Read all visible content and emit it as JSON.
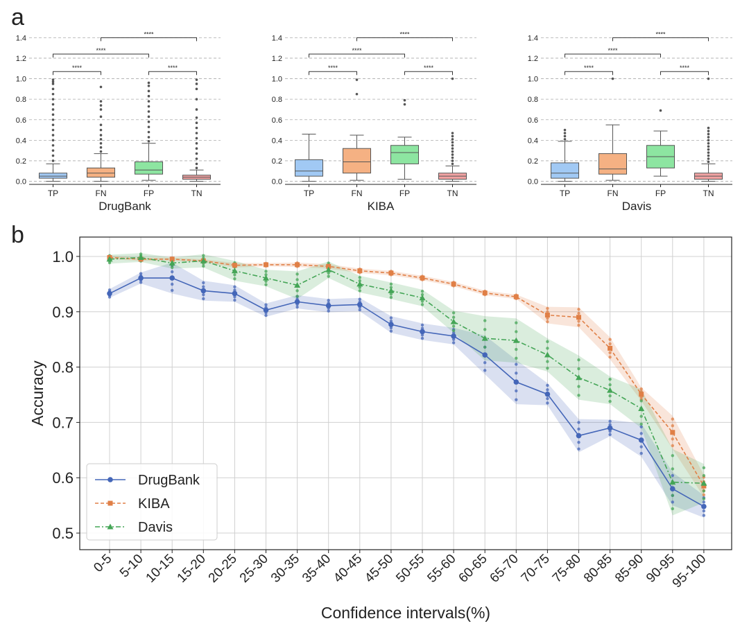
{
  "panel_labels": {
    "a": "a",
    "b": "b"
  },
  "colors": {
    "TP": "#a1c9f4",
    "FN": "#f5b183",
    "FP": "#8de5a1",
    "TN": "#f1a2a2",
    "DrugBank": "#4466b8",
    "KIBA": "#e07f46",
    "Davis": "#44a556",
    "grid": "#aaaaaa",
    "outlier": "#555555"
  },
  "chart_data": [
    {
      "type": "box",
      "title": "DrugBank",
      "categories": [
        "TP",
        "FN",
        "FP",
        "TN"
      ],
      "yticks": [
        "0.0",
        "0.2",
        "0.4",
        "0.6",
        "0.8",
        "1.0",
        "1.2",
        "1.4"
      ],
      "ylim": [
        -0.03,
        1.47
      ],
      "boxes": [
        {
          "label": "TP",
          "whislo": 0.0,
          "q1": 0.03,
          "med": 0.05,
          "q3": 0.08,
          "whishi": 0.17,
          "fliers": [
            0.2,
            0.25,
            0.3,
            0.35,
            0.4,
            0.45,
            0.5,
            0.55,
            0.6,
            0.65,
            0.7,
            0.75,
            0.8,
            0.85,
            0.9,
            0.95,
            0.97,
            0.99
          ]
        },
        {
          "label": "FN",
          "whislo": 0.0,
          "q1": 0.04,
          "med": 0.08,
          "q3": 0.13,
          "whishi": 0.27,
          "fliers": [
            0.29,
            0.33,
            0.37,
            0.41,
            0.45,
            0.5,
            0.55,
            0.63,
            0.7,
            0.74,
            0.78,
            0.92
          ]
        },
        {
          "label": "FP",
          "whislo": 0.01,
          "q1": 0.07,
          "med": 0.11,
          "q3": 0.19,
          "whishi": 0.37,
          "fliers": [
            0.39,
            0.43,
            0.48,
            0.53,
            0.58,
            0.63,
            0.68,
            0.73,
            0.78,
            0.83,
            0.88,
            0.93,
            0.96
          ]
        },
        {
          "label": "TN",
          "whislo": 0.0,
          "q1": 0.02,
          "med": 0.04,
          "q3": 0.06,
          "whishi": 0.11,
          "fliers": [
            0.13,
            0.17,
            0.22,
            0.27,
            0.32,
            0.37,
            0.42,
            0.47,
            0.52,
            0.57,
            0.62,
            0.7,
            0.8,
            0.9,
            0.95,
            0.99
          ]
        }
      ],
      "brackets": [
        {
          "from": "TP",
          "to": "FN",
          "level": 1.07,
          "label": "****"
        },
        {
          "from": "FP",
          "to": "TN",
          "level": 1.07,
          "label": "****"
        },
        {
          "from": "TP",
          "to": "FP",
          "level": 1.24,
          "label": "****"
        },
        {
          "from": "FN",
          "to": "TN",
          "level": 1.4,
          "label": "****"
        }
      ]
    },
    {
      "type": "box",
      "title": "KIBA",
      "categories": [
        "TP",
        "FN",
        "FP",
        "TN"
      ],
      "yticks": [
        "0.0",
        "0.2",
        "0.4",
        "0.6",
        "0.8",
        "1.0",
        "1.2",
        "1.4"
      ],
      "ylim": [
        -0.03,
        1.47
      ],
      "boxes": [
        {
          "label": "TP",
          "whislo": 0.0,
          "q1": 0.05,
          "med": 0.1,
          "q3": 0.21,
          "whishi": 0.46,
          "fliers": []
        },
        {
          "label": "FN",
          "whislo": 0.01,
          "q1": 0.08,
          "med": 0.19,
          "q3": 0.32,
          "whishi": 0.45,
          "fliers": [
            0.85,
            0.99
          ]
        },
        {
          "label": "FP",
          "whislo": 0.02,
          "q1": 0.17,
          "med": 0.28,
          "q3": 0.35,
          "whishi": 0.43,
          "fliers": [
            0.75,
            0.79
          ]
        },
        {
          "label": "TN",
          "whislo": 0.0,
          "q1": 0.02,
          "med": 0.05,
          "q3": 0.08,
          "whishi": 0.15,
          "fliers": [
            0.17,
            0.2,
            0.23,
            0.26,
            0.29,
            0.32,
            0.35,
            0.38,
            0.41,
            0.44,
            0.47,
            1.0
          ]
        }
      ],
      "brackets": [
        {
          "from": "TP",
          "to": "FN",
          "level": 1.07,
          "label": "****"
        },
        {
          "from": "FP",
          "to": "TN",
          "level": 1.07,
          "label": "****"
        },
        {
          "from": "TP",
          "to": "FP",
          "level": 1.24,
          "label": "****"
        },
        {
          "from": "FN",
          "to": "TN",
          "level": 1.4,
          "label": "****"
        }
      ]
    },
    {
      "type": "box",
      "title": "Davis",
      "categories": [
        "TP",
        "FN",
        "FP",
        "TN"
      ],
      "yticks": [
        "0.0",
        "0.2",
        "0.4",
        "0.6",
        "0.8",
        "1.0",
        "1.2",
        "1.4"
      ],
      "ylim": [
        -0.03,
        1.47
      ],
      "boxes": [
        {
          "label": "TP",
          "whislo": 0.0,
          "q1": 0.03,
          "med": 0.08,
          "q3": 0.18,
          "whishi": 0.39,
          "fliers": [
            0.41,
            0.44,
            0.47,
            0.5
          ]
        },
        {
          "label": "FN",
          "whislo": 0.01,
          "q1": 0.07,
          "med": 0.12,
          "q3": 0.27,
          "whishi": 0.55,
          "fliers": [
            1.0
          ]
        },
        {
          "label": "FP",
          "whislo": 0.05,
          "q1": 0.13,
          "med": 0.24,
          "q3": 0.35,
          "whishi": 0.49,
          "fliers": [
            0.69
          ]
        },
        {
          "label": "TN",
          "whislo": 0.0,
          "q1": 0.02,
          "med": 0.05,
          "q3": 0.08,
          "whishi": 0.17,
          "fliers": [
            0.19,
            0.22,
            0.25,
            0.28,
            0.31,
            0.34,
            0.37,
            0.4,
            0.43,
            0.46,
            0.49,
            0.52,
            1.0
          ]
        }
      ],
      "brackets": [
        {
          "from": "TP",
          "to": "FN",
          "level": 1.07,
          "label": "****"
        },
        {
          "from": "FP",
          "to": "TN",
          "level": 1.07,
          "label": "****"
        },
        {
          "from": "TP",
          "to": "FP",
          "level": 1.24,
          "label": "****"
        },
        {
          "from": "FN",
          "to": "TN",
          "level": 1.4,
          "label": "****"
        }
      ]
    },
    {
      "type": "line",
      "xlabel": "Confidence intervals(%)",
      "ylabel": "Accuracy",
      "ylim": [
        0.47,
        1.035
      ],
      "yticks": [
        "0.5",
        "0.6",
        "0.7",
        "0.8",
        "0.9",
        "1.0"
      ],
      "categories": [
        "0-5",
        "5-10",
        "10-15",
        "15-20",
        "20-25",
        "25-30",
        "30-35",
        "35-40",
        "40-45",
        "45-50",
        "50-55",
        "55-60",
        "60-65",
        "65-70",
        "70-75",
        "75-80",
        "80-85",
        "85-90",
        "90-95",
        "95-100"
      ],
      "legend_position": "lower-left",
      "series": [
        {
          "name": "DrugBank",
          "marker": "circle",
          "dash": "solid",
          "values": [
            0.933,
            0.961,
            0.961,
            0.938,
            0.933,
            0.903,
            0.918,
            0.911,
            0.913,
            0.877,
            0.864,
            0.856,
            0.822,
            0.773,
            0.751,
            0.676,
            0.69,
            0.668,
            0.58,
            0.548
          ],
          "band": [
            0.008,
            0.01,
            0.028,
            0.018,
            0.015,
            0.012,
            0.012,
            0.012,
            0.012,
            0.015,
            0.015,
            0.015,
            0.035,
            0.04,
            0.02,
            0.03,
            0.015,
            0.03,
            0.03,
            0.02
          ]
        },
        {
          "name": "KIBA",
          "marker": "square",
          "dash": "dashed",
          "values": [
            0.998,
            0.995,
            0.995,
            0.992,
            0.984,
            0.985,
            0.985,
            0.982,
            0.974,
            0.97,
            0.961,
            0.95,
            0.934,
            0.927,
            0.894,
            0.89,
            0.834,
            0.751,
            0.682,
            0.585
          ],
          "band": [
            0.003,
            0.003,
            0.003,
            0.003,
            0.004,
            0.003,
            0.004,
            0.004,
            0.004,
            0.004,
            0.004,
            0.004,
            0.004,
            0.004,
            0.015,
            0.018,
            0.02,
            0.012,
            0.03,
            0.02
          ]
        },
        {
          "name": "Davis",
          "marker": "triangle",
          "dash": "dashdot",
          "values": [
            0.995,
            0.998,
            0.988,
            0.992,
            0.974,
            0.961,
            0.948,
            0.976,
            0.95,
            0.938,
            0.925,
            0.882,
            0.852,
            0.848,
            0.822,
            0.781,
            0.758,
            0.725,
            0.592,
            0.59
          ],
          "band": [
            0.008,
            0.008,
            0.01,
            0.012,
            0.018,
            0.015,
            0.025,
            0.015,
            0.015,
            0.015,
            0.015,
            0.02,
            0.04,
            0.04,
            0.03,
            0.04,
            0.025,
            0.035,
            0.06,
            0.035
          ]
        }
      ]
    }
  ]
}
